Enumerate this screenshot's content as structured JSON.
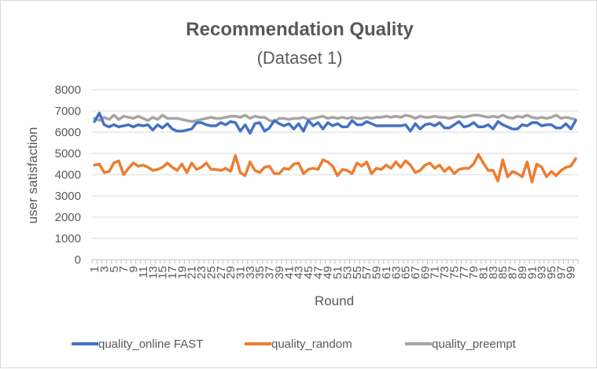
{
  "chart_data": {
    "type": "line",
    "title": "Recommendation Quality",
    "subtitle": "(Dataset 1)",
    "xlabel": "Round",
    "ylabel": "user satisfaction",
    "ylim": [
      0,
      8000
    ],
    "yticks": [
      0,
      1000,
      2000,
      3000,
      4000,
      5000,
      6000,
      7000,
      8000
    ],
    "ytick_labels": [
      "0",
      "1000",
      "2000",
      "3000",
      "4000",
      "5000",
      "6000",
      "7000",
      "8000"
    ],
    "x": [
      1,
      2,
      3,
      4,
      5,
      6,
      7,
      8,
      9,
      10,
      11,
      12,
      13,
      14,
      15,
      16,
      17,
      18,
      19,
      20,
      21,
      22,
      23,
      24,
      25,
      26,
      27,
      28,
      29,
      30,
      31,
      32,
      33,
      34,
      35,
      36,
      37,
      38,
      39,
      40,
      41,
      42,
      43,
      44,
      45,
      46,
      47,
      48,
      49,
      50,
      51,
      52,
      53,
      54,
      55,
      56,
      57,
      58,
      59,
      60,
      61,
      62,
      63,
      64,
      65,
      66,
      67,
      68,
      69,
      70,
      71,
      72,
      73,
      74,
      75,
      76,
      77,
      78,
      79,
      80,
      81,
      82,
      83,
      84,
      85,
      86,
      87,
      88,
      89,
      90,
      91,
      92,
      93,
      94,
      95,
      96,
      97,
      98,
      99,
      100
    ],
    "xtick_labels": [
      "1",
      "3",
      "5",
      "7",
      "9",
      "11",
      "13",
      "15",
      "17",
      "19",
      "21",
      "23",
      "25",
      "27",
      "29",
      "31",
      "33",
      "35",
      "37",
      "39",
      "41",
      "43",
      "45",
      "47",
      "49",
      "51",
      "53",
      "55",
      "57",
      "59",
      "61",
      "63",
      "65",
      "67",
      "69",
      "71",
      "73",
      "75",
      "77",
      "79",
      "81",
      "83",
      "85",
      "87",
      "89",
      "91",
      "93",
      "95",
      "97",
      "99"
    ],
    "grid": true,
    "legend_position": "bottom",
    "series": [
      {
        "name": "quality_online FAST",
        "color": "#4472C4",
        "values": [
          6500,
          6900,
          6350,
          6250,
          6350,
          6250,
          6300,
          6350,
          6250,
          6350,
          6300,
          6350,
          6100,
          6350,
          6200,
          6400,
          6150,
          6050,
          6050,
          6100,
          6150,
          6450,
          6450,
          6350,
          6300,
          6300,
          6450,
          6350,
          6500,
          6450,
          6050,
          6350,
          5950,
          6400,
          6450,
          6050,
          6200,
          6550,
          6400,
          6300,
          6400,
          6150,
          6400,
          6050,
          6550,
          6300,
          6450,
          6150,
          6450,
          6300,
          6400,
          6250,
          6250,
          6550,
          6350,
          6350,
          6500,
          6400,
          6300,
          6300,
          6300,
          6300,
          6300,
          6300,
          6350,
          6050,
          6400,
          6150,
          6350,
          6400,
          6300,
          6450,
          6200,
          6200,
          6350,
          6500,
          6250,
          6300,
          6450,
          6250,
          6250,
          6350,
          6150,
          6500,
          6350,
          6250,
          6150,
          6150,
          6350,
          6300,
          6450,
          6450,
          6300,
          6350,
          6350,
          6200,
          6200,
          6400,
          6150,
          6550
        ]
      },
      {
        "name": "quality_random",
        "color": "#ED7D31",
        "values": [
          4450,
          4500,
          4100,
          4150,
          4550,
          4650,
          4000,
          4300,
          4550,
          4400,
          4450,
          4350,
          4200,
          4250,
          4350,
          4550,
          4350,
          4200,
          4500,
          4100,
          4550,
          4250,
          4350,
          4550,
          4250,
          4250,
          4200,
          4300,
          4150,
          4900,
          4100,
          3950,
          4600,
          4200,
          4100,
          4350,
          4400,
          4050,
          4050,
          4300,
          4250,
          4500,
          4550,
          4050,
          4250,
          4300,
          4250,
          4700,
          4600,
          4400,
          3950,
          4250,
          4200,
          4050,
          4550,
          4400,
          4600,
          4050,
          4300,
          4250,
          4450,
          4300,
          4600,
          4350,
          4650,
          4450,
          4100,
          4200,
          4450,
          4550,
          4300,
          4450,
          4150,
          4350,
          4050,
          4250,
          4300,
          4300,
          4500,
          4950,
          4550,
          4200,
          4200,
          3700,
          4700,
          3900,
          4150,
          4050,
          3900,
          4600,
          3650,
          4500,
          4350,
          3900,
          4150,
          3950,
          4200,
          4350,
          4400,
          4750
        ]
      },
      {
        "name": "quality_preempt",
        "color": "#A5A5A5",
        "values": [
          6650,
          6550,
          6700,
          6600,
          6800,
          6600,
          6750,
          6700,
          6650,
          6750,
          6650,
          6550,
          6700,
          6600,
          6800,
          6650,
          6650,
          6650,
          6600,
          6550,
          6500,
          6550,
          6600,
          6650,
          6700,
          6650,
          6650,
          6700,
          6750,
          6750,
          6700,
          6800,
          6650,
          6750,
          6700,
          6700,
          6550,
          6500,
          6650,
          6650,
          6600,
          6650,
          6650,
          6700,
          6600,
          6650,
          6700,
          6750,
          6650,
          6700,
          6650,
          6700,
          6650,
          6700,
          6650,
          6650,
          6700,
          6650,
          6700,
          6700,
          6750,
          6700,
          6750,
          6700,
          6800,
          6750,
          6650,
          6750,
          6700,
          6700,
          6750,
          6700,
          6700,
          6650,
          6700,
          6750,
          6700,
          6750,
          6800,
          6800,
          6750,
          6700,
          6750,
          6700,
          6800,
          6700,
          6650,
          6750,
          6700,
          6800,
          6700,
          6650,
          6700,
          6650,
          6700,
          6800,
          6650,
          6700,
          6650,
          6600
        ]
      }
    ]
  }
}
